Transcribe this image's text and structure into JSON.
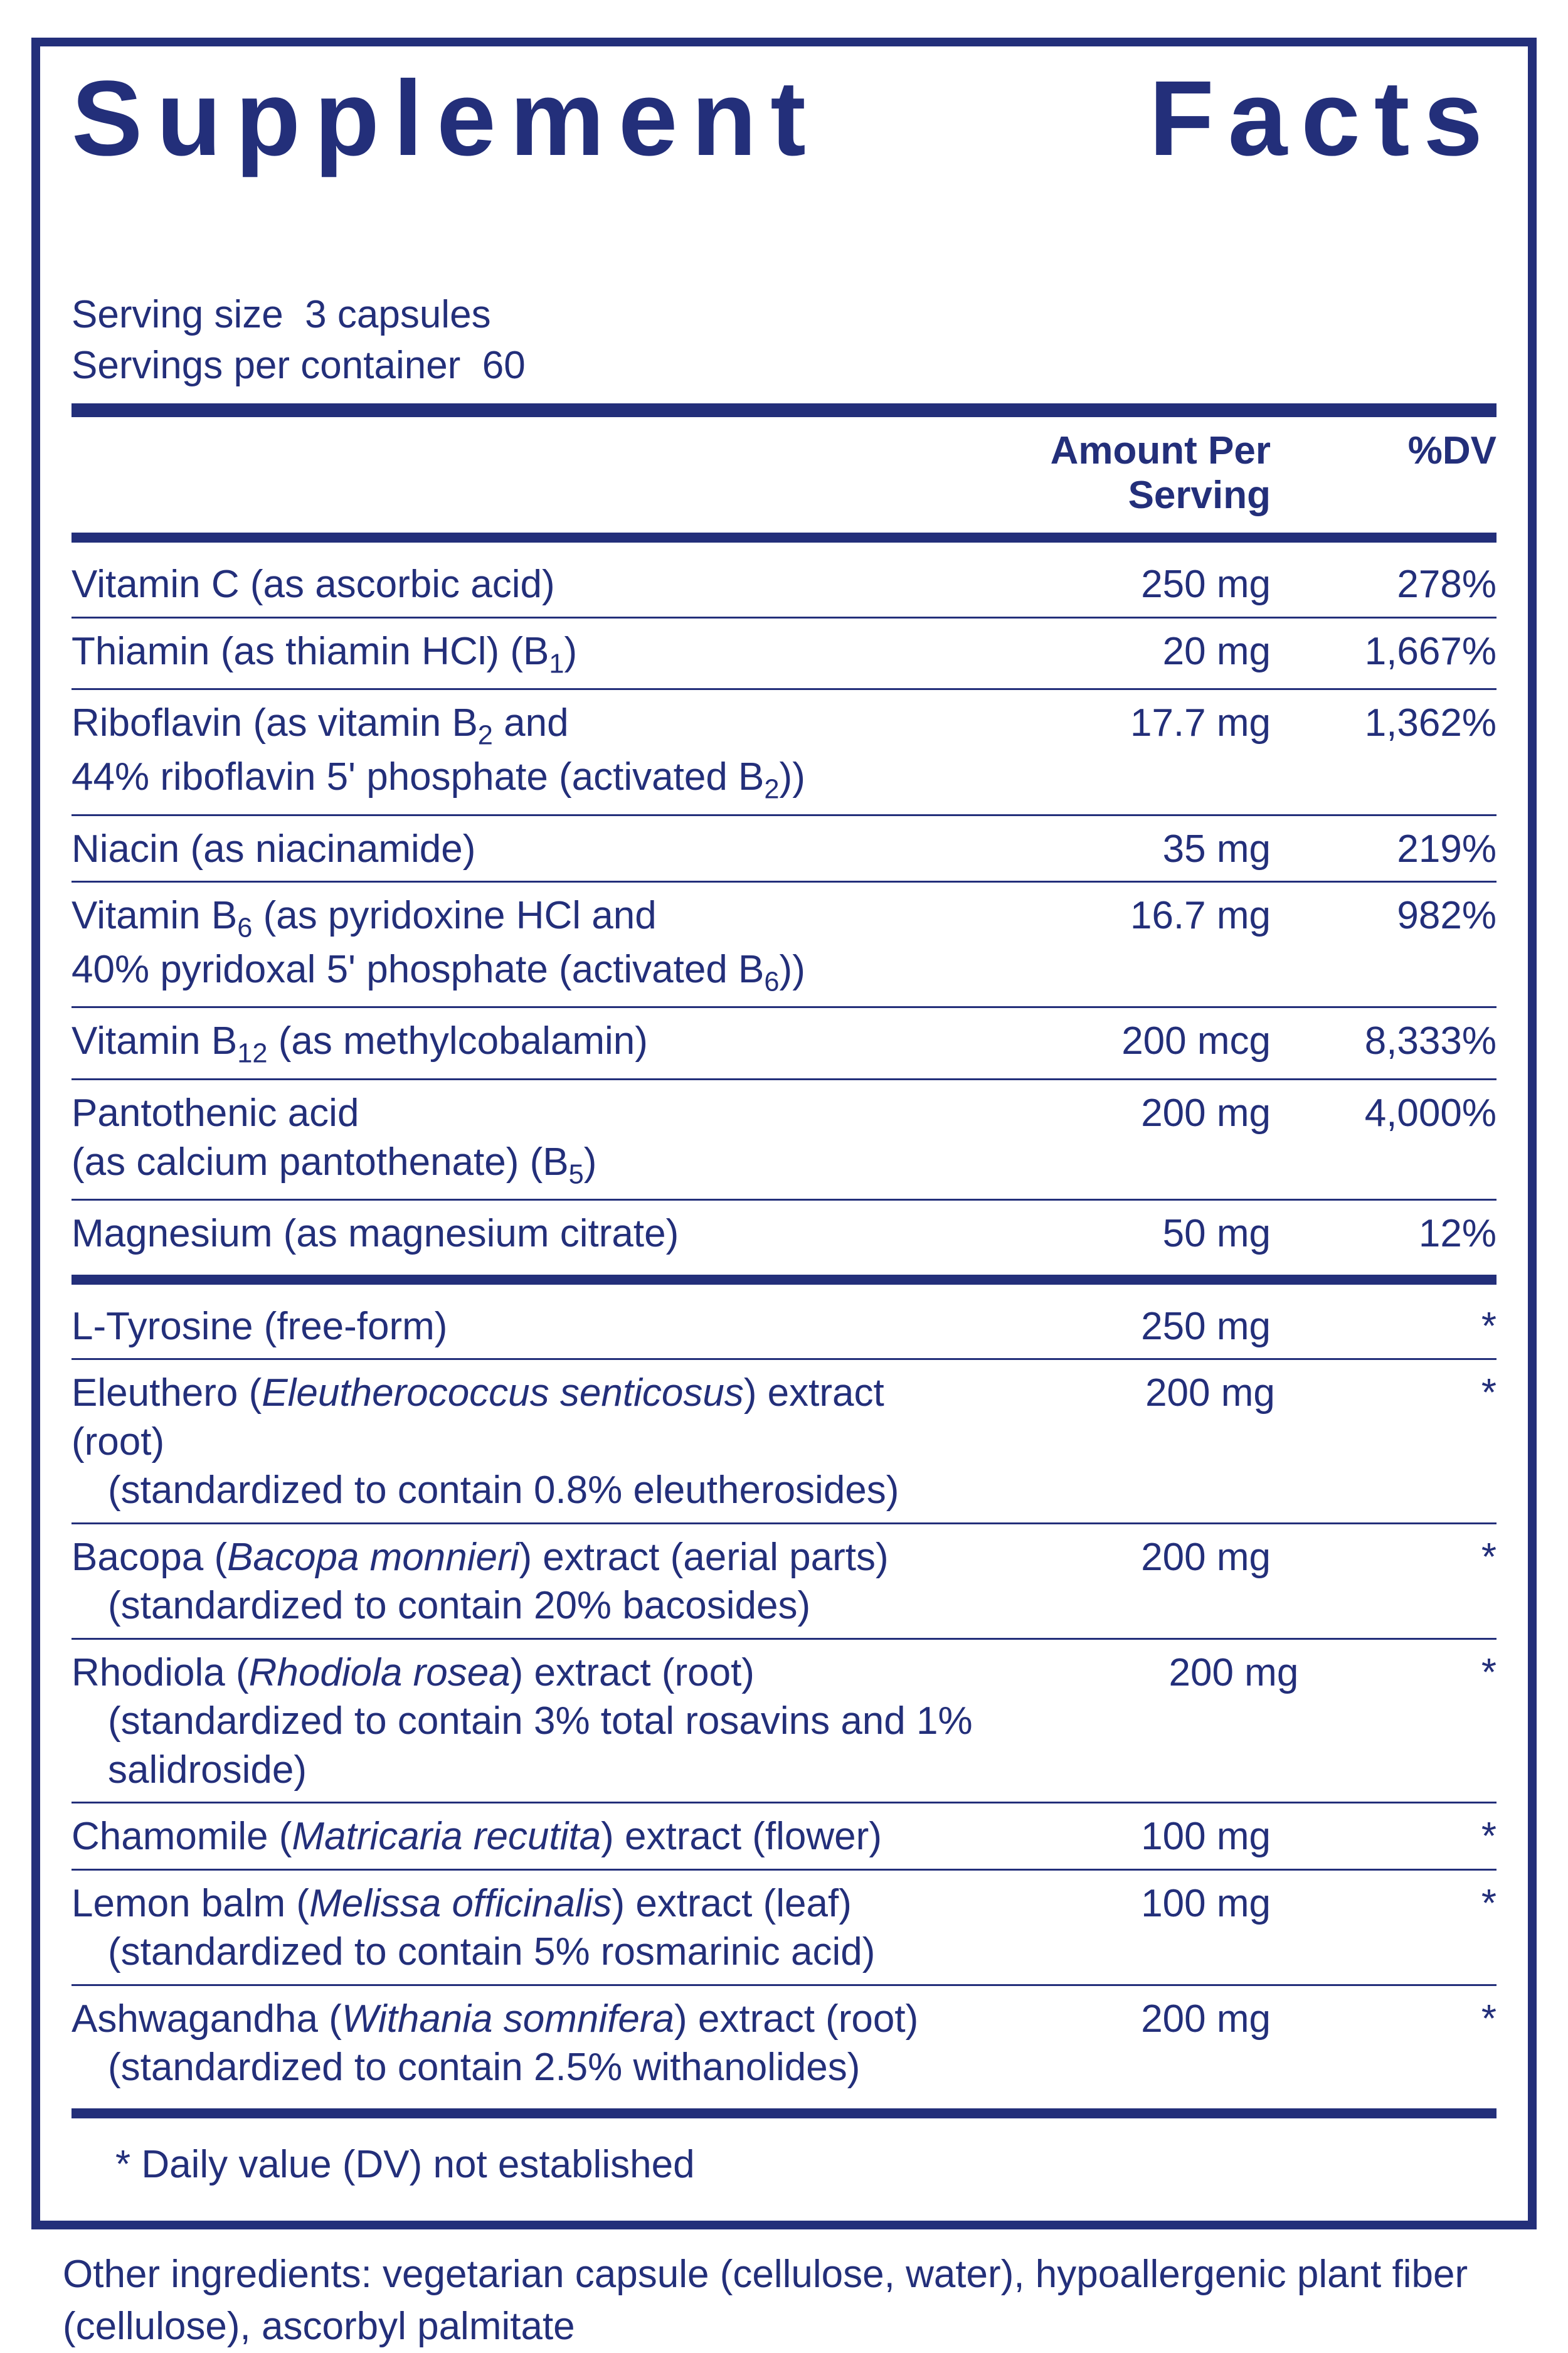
{
  "colors": {
    "ink": "#232f7a",
    "background": "#ffffff"
  },
  "title": "Supplement Facts",
  "serving_size_label": "Serving size",
  "serving_size_value": "3 capsules",
  "servings_per_container_label": "Servings per container",
  "servings_per_container_value": "60",
  "header": {
    "amount": "Amount Per Serving",
    "dv": "%DV"
  },
  "section1": [
    {
      "name_html": "Vitamin C (as ascorbic acid)",
      "amount": "250 mg",
      "dv": "278%"
    },
    {
      "name_html": "Thiamin (as thiamin HCl) (B<sub>1</sub>)",
      "amount": "20 mg",
      "dv": "1,667%"
    },
    {
      "name_html": "Riboflavin (as vitamin B<sub>2</sub> and<span class=\"sub\">44% riboflavin 5' phosphate (activated B<sub>2</sub>))</span>",
      "amount": "17.7 mg",
      "dv": "1,362%"
    },
    {
      "name_html": "Niacin (as niacinamide)",
      "amount": "35 mg",
      "dv": "219%"
    },
    {
      "name_html": "Vitamin B<sub>6</sub> (as pyridoxine HCl and<span class=\"sub\">40% pyridoxal 5' phosphate (activated B<sub>6</sub>))</span>",
      "amount": "16.7 mg",
      "dv": "982%"
    },
    {
      "name_html": "Vitamin B<sub>12</sub> (as methylcobalamin)",
      "amount": "200 mcg",
      "dv": "8,333%"
    },
    {
      "name_html": "Pantothenic acid<span class=\"sub\">(as calcium pantothenate) (B<sub>5</sub>)</span>",
      "amount": "200 mg",
      "dv": "4,000%"
    },
    {
      "name_html": "Magnesium (as magnesium citrate)",
      "amount": "50 mg",
      "dv": "12%"
    }
  ],
  "section2": [
    {
      "name_html": "L-Tyrosine (free-form)",
      "amount": "250 mg",
      "dv": "*"
    },
    {
      "name_html": "Eleuthero (<em>Eleutherococcus senticosus</em>) extract (root)<span class=\"indent\">(standardized to contain 0.8% eleutherosides)</span>",
      "amount": "200 mg",
      "dv": "*"
    },
    {
      "name_html": "Bacopa (<em>Bacopa monnieri</em>) extract (aerial parts)<span class=\"indent\">(standardized to contain 20% bacosides)</span>",
      "amount": "200 mg",
      "dv": "*"
    },
    {
      "name_html": "Rhodiola (<em>Rhodiola rosea</em>) extract (root)<span class=\"indent\">(standardized to contain 3% total rosavins and 1% salidroside)</span>",
      "amount": "200 mg",
      "dv": "*"
    },
    {
      "name_html": "Chamomile (<em>Matricaria recutita</em>) extract (flower)",
      "amount": "100 mg",
      "dv": "*"
    },
    {
      "name_html": "Lemon balm (<em>Melissa officinalis</em>) extract (leaf)<span class=\"indent\">(standardized to contain 5% rosmarinic acid)</span>",
      "amount": "100 mg",
      "dv": "*"
    },
    {
      "name_html": "Ashwagandha (<em>Withania somnifera</em>) extract (root)<span class=\"indent\">(standardized to contain 2.5% withanolides)</span>",
      "amount": "200 mg",
      "dv": "*"
    }
  ],
  "footnote": "* Daily value (DV) not established",
  "other_ingredients": "Other ingredients: vegetarian capsule (cellulose, water), hypoallergenic plant fiber (cellulose), ascorbyl palmitate"
}
